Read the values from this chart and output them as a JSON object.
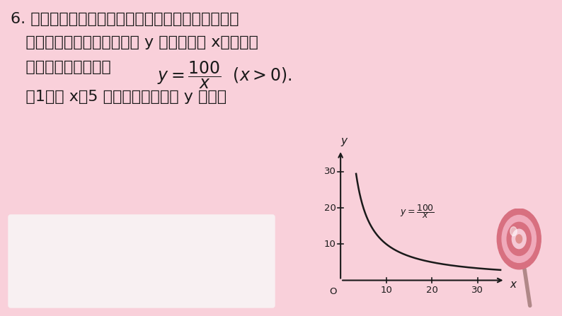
{
  "bg_color": "#f9d0da",
  "white_box_color": "#f5f5f5",
  "text_color": "#1a1a1a",
  "curve_color": "#1a1a1a",
  "axis_color": "#1a1a1a",
  "line1": "6. 去学校食堂就餐，经常会在买菜窗口前等待．经调",
  "line2": "   查发现，同学的舒适度指数 y 与等待时间 x（分钟）",
  "line3_pre": "   之间存在如下关系：",
  "line4": "   （1）若 x＝5 时，求舒适度指数 y 的值；",
  "graph_xticks": [
    10,
    20,
    30
  ],
  "graph_yticks": [
    10,
    20,
    30
  ],
  "graph_xlabel": "x",
  "graph_ylabel": "y",
  "graph_origin_label": "O",
  "lollipop_outer": "#e08898",
  "lollipop_mid": "#f0b8c8",
  "lollipop_inner": "#e08898",
  "lollipop_center": "#f5d5df",
  "stick_color": "#b08888"
}
